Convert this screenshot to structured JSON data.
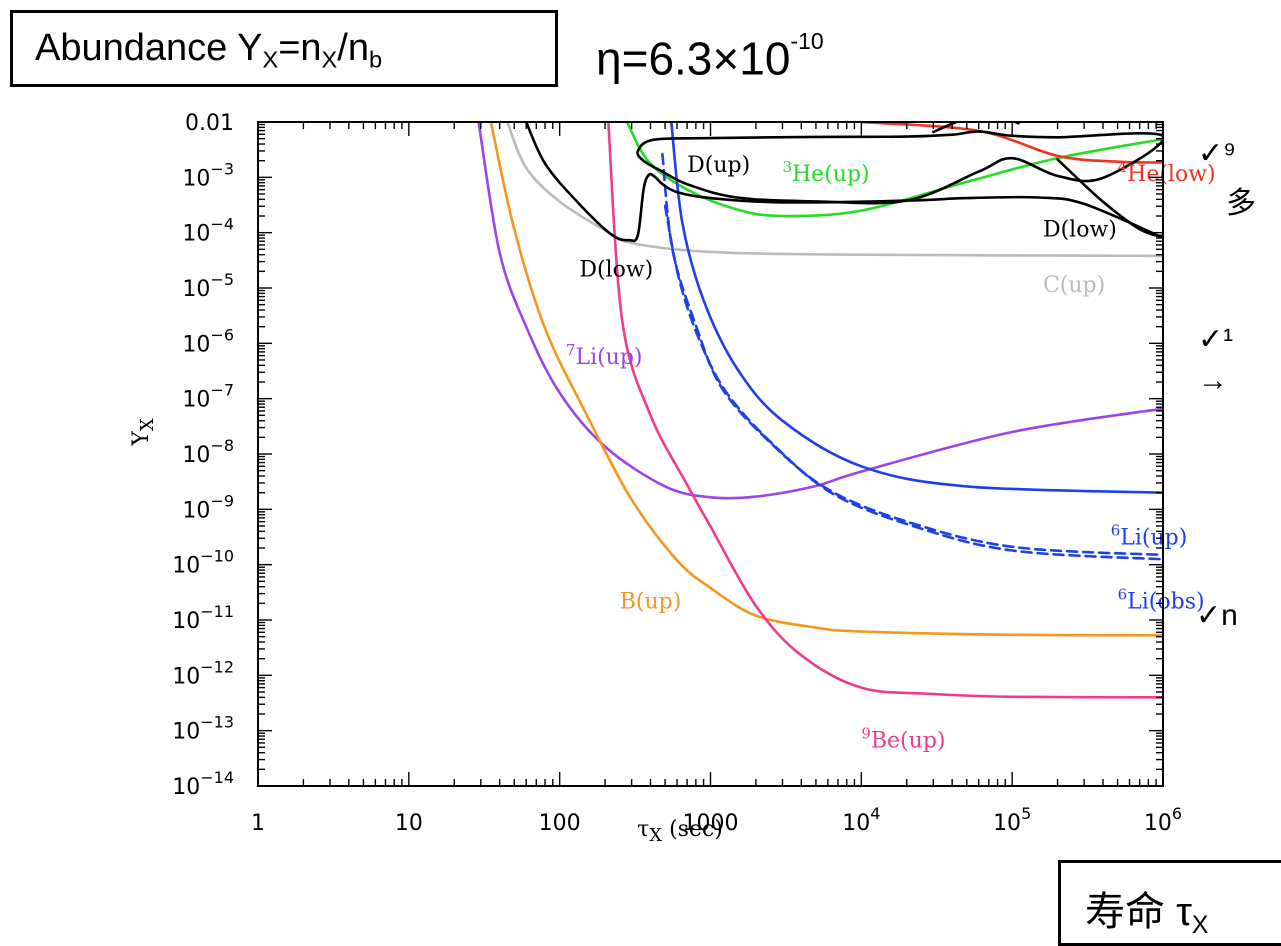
{
  "header": {
    "abundance_main": "Abundance Y",
    "abundance_sub1": "X",
    "abundance_mid": "=n",
    "abundance_sub2": "X",
    "abundance_slash": "/n",
    "abundance_sub3": "b",
    "eta_main": "η=6.3×10",
    "eta_exp": "-10"
  },
  "lifetime_box": {
    "label": "寿命 τ",
    "sub": "X"
  },
  "side_notes": [
    "✓⁹",
    "多",
    "✓¹",
    "→",
    "✓n"
  ],
  "colors": {
    "black": "#000000",
    "green": "#22dd22",
    "red": "#ee3322",
    "gray": "#bbbbbb",
    "blue": "#1f3fe8",
    "purple": "#9b45e8",
    "orange": "#f5961e",
    "pink": "#ee3c8c"
  },
  "chart_data": {
    "type": "line",
    "xlabel": "τX (sec)",
    "xlabel_main": "τ",
    "xlabel_sub": "X",
    "xlabel_unit": " (sec)",
    "ylabel_main": "Y",
    "ylabel_sub": "X",
    "xscale": "log",
    "yscale": "log",
    "xlim": [
      1,
      1000000
    ],
    "ylim": [
      1e-14,
      0.01
    ],
    "x_ticks": [
      {
        "value": 1,
        "label": "1"
      },
      {
        "value": 10,
        "label": "10"
      },
      {
        "value": 100,
        "label": "100"
      },
      {
        "value": 1000,
        "label": "1000"
      },
      {
        "value": 10000,
        "base": "10",
        "exp": "4"
      },
      {
        "value": 100000,
        "base": "10",
        "exp": "5"
      },
      {
        "value": 1000000,
        "base": "10",
        "exp": "6"
      }
    ],
    "y_ticks": [
      {
        "value": 0.01,
        "label": "0.01"
      },
      {
        "value": 0.001,
        "base": "10",
        "exp": "−3"
      },
      {
        "value": 0.0001,
        "base": "10",
        "exp": "−4"
      },
      {
        "value": 1e-05,
        "base": "10",
        "exp": "−5"
      },
      {
        "value": 1e-06,
        "base": "10",
        "exp": "−6"
      },
      {
        "value": 1e-07,
        "base": "10",
        "exp": "−7"
      },
      {
        "value": 1e-08,
        "base": "10",
        "exp": "−8"
      },
      {
        "value": 1e-09,
        "base": "10",
        "exp": "−9"
      },
      {
        "value": 1e-10,
        "base": "10",
        "exp": "−10"
      },
      {
        "value": 1e-11,
        "base": "10",
        "exp": "−11"
      },
      {
        "value": 1e-12,
        "base": "10",
        "exp": "−12"
      },
      {
        "value": 1e-13,
        "base": "10",
        "exp": "−13"
      },
      {
        "value": 1e-14,
        "base": "10",
        "exp": "−14"
      }
    ],
    "series": [
      {
        "color": "#bbbbbb",
        "dashed": false,
        "points": [
          [
            45,
            0.01
          ],
          [
            60,
            0.00148
          ],
          [
            100,
            0.000365
          ],
          [
            200,
            0.00011
          ],
          [
            300,
            6.5e-05
          ],
          [
            1000,
            4.5e-05
          ],
          [
            10000,
            4e-05
          ],
          [
            1000000,
            3.8e-05
          ]
        ]
      },
      {
        "color": "#22dd22",
        "dashed": false,
        "points": [
          [
            280,
            0.01
          ],
          [
            390,
            0.0019
          ],
          [
            700,
            0.0006
          ],
          [
            1500,
            0.000262
          ],
          [
            3000,
            0.0002
          ],
          [
            10000,
            0.000251
          ],
          [
            50000,
            0.000827
          ],
          [
            200000,
            0.00223
          ],
          [
            1000000,
            0.0049
          ]
        ]
      },
      {
        "color": "#ee3322",
        "dashed": false,
        "points": [
          [
            10000,
            0.01
          ],
          [
            60000,
            0.0069
          ],
          [
            200000,
            0.00244
          ],
          [
            500000,
            0.00192
          ],
          [
            1000000,
            0.00185
          ]
        ]
      },
      {
        "color": "#9b45e8",
        "dashed": false,
        "points": [
          [
            29,
            0.01
          ],
          [
            40,
            4.4e-05
          ],
          [
            60,
            2e-06
          ],
          [
            100,
            1.27e-07
          ],
          [
            200,
            1.36e-08
          ],
          [
            500,
            2.6e-09
          ],
          [
            1000,
            1.65e-09
          ],
          [
            2000,
            1.7e-09
          ],
          [
            5000,
            2.64e-09
          ],
          [
            10000,
            4.8e-09
          ],
          [
            100000,
            2.5e-08
          ],
          [
            1000000,
            6.6e-08
          ]
        ]
      },
      {
        "color": "#f5961e",
        "dashed": false,
        "points": [
          [
            35,
            0.01
          ],
          [
            50,
            0.000115
          ],
          [
            80,
            1.87e-06
          ],
          [
            150,
            5.3e-08
          ],
          [
            300,
            1.5e-09
          ],
          [
            600,
            1.2e-10
          ],
          [
            1000,
            3.8e-11
          ],
          [
            2000,
            1.2e-11
          ],
          [
            5000,
            7.3e-12
          ],
          [
            10000,
            6.2e-12
          ],
          [
            100000,
            5.4e-12
          ],
          [
            1000000,
            5.3e-12
          ]
        ]
      },
      {
        "color": "#ee3c8c",
        "dashed": false,
        "points": [
          [
            210,
            0.01
          ],
          [
            260,
            2.5e-06
          ],
          [
            400,
            5e-08
          ],
          [
            700,
            2.8e-09
          ],
          [
            1000,
            4.9e-10
          ],
          [
            2000,
            1.8e-11
          ],
          [
            4000,
            2.3e-12
          ],
          [
            10000,
            6e-13
          ],
          [
            30000,
            4.6e-13
          ],
          [
            100000,
            4.1e-13
          ],
          [
            1000000,
            4e-13
          ]
        ]
      },
      {
        "color": "#1f3fe8",
        "dashed": false,
        "points": [
          [
            550,
            0.01
          ],
          [
            650,
            0.000152
          ],
          [
            900,
            6e-06
          ],
          [
            1500,
            3.5e-07
          ],
          [
            3000,
            4e-08
          ],
          [
            10000,
            6e-09
          ],
          [
            50000,
            2.6e-09
          ],
          [
            1000000,
            2e-09
          ]
        ]
      },
      {
        "color": "#1f3fe8",
        "dashed": true,
        "points": [
          [
            480,
            0.00263
          ],
          [
            560,
            4.9e-05
          ],
          [
            800,
            2.1e-06
          ],
          [
            1200,
            1.5e-07
          ],
          [
            2500,
            1.6e-08
          ],
          [
            6000,
            2.3e-09
          ],
          [
            20000,
            6e-10
          ],
          [
            100000,
            2.1e-10
          ],
          [
            1000000,
            1.5e-10
          ]
        ]
      },
      {
        "color": "#1f3fe8",
        "dashed": true,
        "points": [
          [
            500,
            0.000305
          ],
          [
            620,
            1.42e-05
          ],
          [
            850,
            1.1e-06
          ],
          [
            1300,
            1.2e-07
          ],
          [
            2700,
            1.35e-08
          ],
          [
            6500,
            1.9e-09
          ],
          [
            22000,
            5e-10
          ],
          [
            100000,
            1.8e-10
          ],
          [
            1000000,
            1.25e-10
          ]
        ]
      },
      {
        "color": "#000000",
        "dashed": false,
        "closed": true,
        "points": [
          [
            330,
            0.003
          ],
          [
            420,
            0.00478
          ],
          [
            1000,
            0.00512
          ],
          [
            5000,
            0.00537
          ],
          [
            20000,
            0.00544
          ],
          [
            40000,
            0.0059
          ],
          [
            60000,
            0.0067
          ],
          [
            100000,
            0.00563
          ],
          [
            200000,
            0.0053
          ],
          [
            1000000,
            0.00559
          ],
          [
            400000,
            0.000975
          ],
          [
            200000,
            0.00106
          ],
          [
            100000,
            0.00222
          ],
          [
            60000,
            0.00127
          ],
          [
            20000,
            0.000379
          ],
          [
            5000,
            0.000368
          ],
          [
            1500,
            0.000432
          ],
          [
            700,
            0.000752
          ],
          [
            470,
            0.00131
          ],
          [
            360,
            0.00198
          ]
        ]
      },
      {
        "color": "#000000",
        "dashed": false,
        "points": [
          [
            60,
            0.01
          ],
          [
            80,
            0.00178
          ],
          [
            130,
            0.000366
          ],
          [
            220,
            9.3e-05
          ],
          [
            290,
            7.3e-05
          ],
          [
            330,
            9.1e-05
          ],
          [
            360,
            0.00061
          ],
          [
            390,
            0.00111
          ],
          [
            430,
            0.00101
          ],
          [
            480,
            0.000758
          ],
          [
            600,
            0.000541
          ],
          [
            1000,
            0.000421
          ],
          [
            3000,
            0.000352
          ],
          [
            20000,
            0.000379
          ],
          [
            50000,
            0.000422
          ],
          [
            150000,
            0.000432
          ],
          [
            300000,
            0.000331
          ],
          [
            1000000,
            8.1e-05
          ]
        ]
      },
      {
        "color": "#000000",
        "dashed": false,
        "points": [
          [
            200000,
            0.0021
          ],
          [
            250000,
            0.00118
          ],
          [
            400000,
            0.000363
          ],
          [
            700000,
            0.000116
          ],
          [
            1000000,
            8.3e-05
          ]
        ]
      },
      {
        "color": "#000000",
        "dashed": false,
        "points": [
          [
            30000,
            0.0066
          ],
          [
            50000,
            0.0115
          ],
          [
            70000,
            0.0106
          ],
          [
            90000,
            0.0115
          ],
          [
            110000,
            0.0095
          ]
        ]
      }
    ],
    "annotations": [
      {
        "text": "D(up)",
        "x": 700,
        "y": 0.00125,
        "color": "#000000"
      },
      {
        "sup": "3",
        "text": "He(up)",
        "x": 3000,
        "y": 0.00085,
        "color": "#22dd22"
      },
      {
        "sup": "4",
        "text": "He(low)",
        "x": 500000,
        "y": 0.00085,
        "color": "#ee3322"
      },
      {
        "text": "D(low)",
        "x": 160000,
        "y": 8.6e-05,
        "color": "#000000"
      },
      {
        "text": "D(low)",
        "x": 135,
        "y": 1.6e-05,
        "color": "#000000"
      },
      {
        "text": "C(up)",
        "x": 160000,
        "y": 8.5e-06,
        "color": "#bbbbbb"
      },
      {
        "sup": "7",
        "text": "Li(up)",
        "x": 110,
        "y": 4.2e-07,
        "color": "#9b45e8"
      },
      {
        "sup": "6",
        "text": "Li(up)",
        "x": 450000,
        "y": 2.3e-10,
        "color": "#1f3fe8"
      },
      {
        "sup": "6",
        "text": "Li(obs)",
        "x": 500000,
        "y": 1.6e-11,
        "color": "#1f3fe8"
      },
      {
        "text": "B(up)",
        "x": 250,
        "y": 1.6e-11,
        "color": "#f5961e"
      },
      {
        "sup": "9",
        "text": "Be(up)",
        "x": 10000,
        "y": 5e-14,
        "color": "#ee3c8c"
      }
    ]
  }
}
